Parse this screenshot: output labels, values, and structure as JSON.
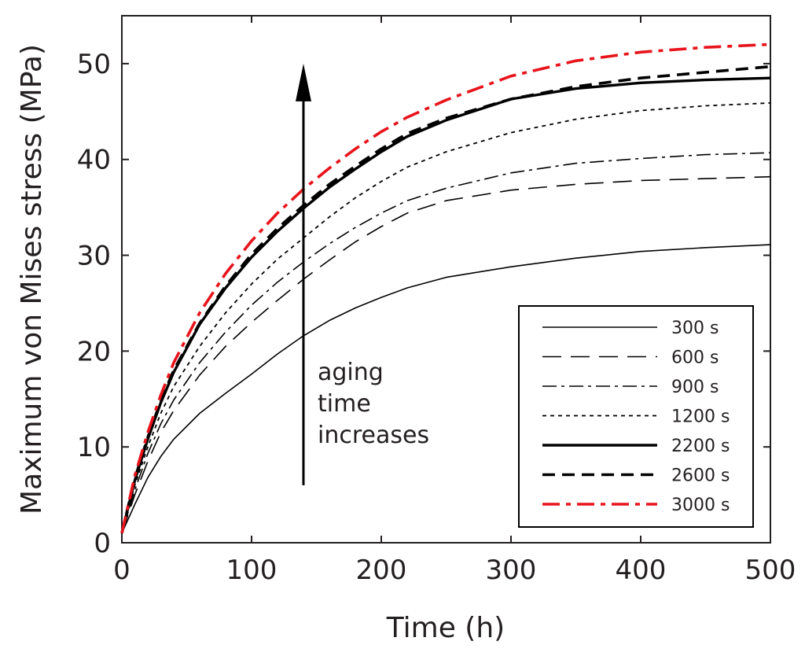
{
  "chart_data": {
    "type": "line",
    "title": "",
    "xlabel": "Time (h)",
    "ylabel": "Maximum von Mises stress (MPa)",
    "xlim": [
      0,
      500
    ],
    "ylim": [
      0,
      55
    ],
    "xticks": [
      0,
      100,
      200,
      300,
      400,
      500
    ],
    "yticks": [
      0,
      10,
      20,
      30,
      40,
      50
    ],
    "grid": false,
    "legend_position": "bottom-right",
    "x": [
      0,
      10,
      20,
      30,
      40,
      60,
      80,
      100,
      120,
      140,
      160,
      180,
      200,
      220,
      250,
      300,
      350,
      400,
      450,
      500
    ],
    "series": [
      {
        "name": "300 s",
        "style": "solid-thin",
        "color": "#000000",
        "values": [
          1,
          4,
          6.8,
          9,
          10.8,
          13.5,
          15.6,
          17.6,
          19.7,
          21.6,
          23.2,
          24.5,
          25.6,
          26.6,
          27.7,
          28.8,
          29.7,
          30.4,
          30.8,
          31.1
        ]
      },
      {
        "name": "600 s",
        "style": "long-dash-thin",
        "color": "#000000",
        "values": [
          1,
          5,
          8.5,
          11.5,
          13.8,
          17.5,
          20.5,
          23,
          25.3,
          27.5,
          29.5,
          31.4,
          33,
          34.4,
          35.7,
          36.8,
          37.4,
          37.8,
          38,
          38.2
        ]
      },
      {
        "name": "900 s",
        "style": "dash-dot-thin",
        "color": "#000000",
        "values": [
          1,
          5.5,
          9.3,
          12.4,
          14.9,
          18.8,
          22,
          24.8,
          27.2,
          29.3,
          31.2,
          32.9,
          34.4,
          35.7,
          37,
          38.6,
          39.6,
          40.1,
          40.5,
          40.7
        ]
      },
      {
        "name": "1200 s",
        "style": "dotted-thin",
        "color": "#000000",
        "values": [
          1,
          6,
          10,
          13.5,
          16.3,
          20.5,
          24,
          27,
          29.6,
          31.8,
          34,
          36,
          37.7,
          39.2,
          40.8,
          42.8,
          44.2,
          45.1,
          45.6,
          45.9
        ]
      },
      {
        "name": "2200 s",
        "style": "solid-thick",
        "color": "#000000",
        "values": [
          1,
          6.5,
          10.8,
          14.6,
          17.8,
          22.8,
          26.6,
          29.8,
          32.5,
          34.9,
          37.1,
          39,
          40.8,
          42.4,
          44.1,
          46.3,
          47.4,
          48,
          48.3,
          48.5
        ]
      },
      {
        "name": "2600 s",
        "style": "dash-thick",
        "color": "#000000",
        "values": [
          1,
          6.7,
          11,
          14.8,
          18,
          22.9,
          26.8,
          30.1,
          32.8,
          35.2,
          37.4,
          39.3,
          41.1,
          42.7,
          44.3,
          46.3,
          47.6,
          48.5,
          49.1,
          49.7
        ]
      },
      {
        "name": "3000 s",
        "style": "dash-dot-thick",
        "color": "#e8141c",
        "values": [
          1,
          7,
          11.5,
          15.4,
          18.8,
          24,
          28.1,
          31.5,
          34.4,
          36.9,
          39.1,
          41.1,
          42.9,
          44.4,
          46.2,
          48.7,
          50.3,
          51.2,
          51.7,
          52
        ]
      }
    ],
    "annotation": {
      "lines": [
        "aging",
        "time",
        "increases"
      ],
      "arrow_x": 140,
      "arrow_from_y": 6,
      "arrow_to_y": 50
    }
  }
}
